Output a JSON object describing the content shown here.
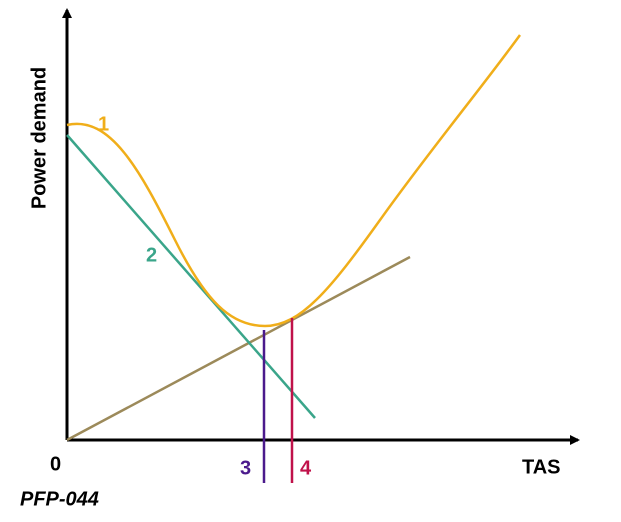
{
  "axes": {
    "y_label": "Power demand",
    "x_label": "TAS",
    "origin": "0"
  },
  "curves": [
    {
      "label": "1"
    },
    {
      "label": "2"
    }
  ],
  "markers": [
    {
      "label": "3"
    },
    {
      "label": "4"
    }
  ],
  "footer": "PFP-044"
}
